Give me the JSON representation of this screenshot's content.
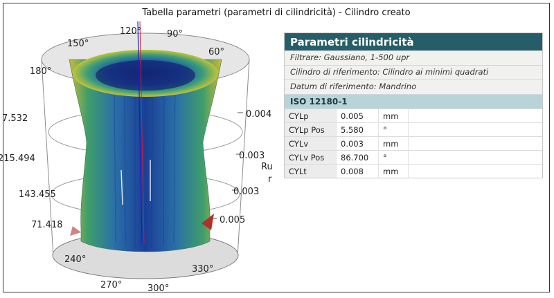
{
  "window": {
    "title": "Tabella parametri (parametri di cilindricità) - Cilindro creato"
  },
  "plot": {
    "angle_labels": [
      "120°",
      "90°",
      "150°",
      "60°",
      "180°",
      "240°",
      "330°",
      "270°",
      "300°"
    ],
    "height_labels": [
      "7.532",
      "215.494",
      "143.455",
      "71.418"
    ],
    "scale_labels": [
      "0.004",
      "0.003",
      "0.003",
      "0.005"
    ],
    "axis_title_fragment": "Ru",
    "axis_title_fragment2": "r",
    "colors": {
      "blue": "#1b3aa8",
      "green": "#4ea86a",
      "yellow": "#d9c53c",
      "red": "#b3302a"
    }
  },
  "parameters": {
    "title": "Parametri cilindricità",
    "filter": "Filtrare: Gaussiano, 1-500 upr",
    "reference_cylinder": "Cilindro di riferimento: Cilindro ai minimi quadrati",
    "datum": "Datum di riferimento: Mandrino",
    "standard": "ISO 12180-1",
    "rows": [
      {
        "name": "CYLp",
        "value": "0.005",
        "unit": "mm"
      },
      {
        "name": "CYLp Pos",
        "value": "5.580",
        "unit": "°"
      },
      {
        "name": "CYLv",
        "value": "0.003",
        "unit": "mm"
      },
      {
        "name": "CYLv Pos",
        "value": "86.700",
        "unit": "°"
      },
      {
        "name": "CYLt",
        "value": "0.008",
        "unit": "mm"
      }
    ]
  }
}
